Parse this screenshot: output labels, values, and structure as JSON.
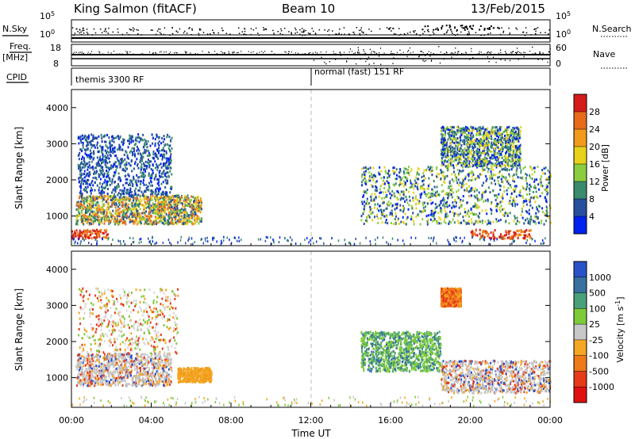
{
  "header": {
    "station": "King Salmon (fitACF)",
    "beam": "Beam 10",
    "date": "13/Feb/2015"
  },
  "side_labels": {
    "nsky": "N.Sky",
    "freq": "Freq.",
    "freq_unit": "[MHz]",
    "cpid": "CPID",
    "nsearch": "N.Search",
    "nave": "Nave"
  },
  "mini_axes": {
    "nsky_ticks": [
      "10^5",
      "10^0"
    ],
    "nsearch_ticks": [
      "10^5",
      "10^0"
    ],
    "freq_ticks": [
      "18",
      "8"
    ],
    "nave_ticks": [
      "60",
      "0"
    ]
  },
  "cpid": [
    {
      "label": "themis 3300 RF",
      "start_hour": 0
    },
    {
      "label": "normal (fast) 151 RF",
      "start_hour": 12
    }
  ],
  "chart_data": [
    {
      "type": "heatmap",
      "title": "",
      "xlabel": "Time UT",
      "ylabel": "Slant Range [km]",
      "xlim": [
        0,
        24
      ],
      "ylim": [
        180,
        4500
      ],
      "x_ticks": [
        "00:00",
        "04:00",
        "08:00",
        "12:00",
        "16:00",
        "20:00",
        "00:00"
      ],
      "y_ticks": [
        1000,
        2000,
        3000,
        4000
      ],
      "colorbar": {
        "label": "Power [dB]",
        "ticks": [
          "4",
          "8",
          "12",
          "16",
          "20",
          "24",
          "28"
        ],
        "colors": [
          "#0022ee",
          "#274f9e",
          "#3a8a6e",
          "#8acd40",
          "#e8d21b",
          "#f19a1b",
          "#e86a1b",
          "#d61b1b"
        ]
      },
      "features": [
        {
          "t0": 0.2,
          "t1": 6.5,
          "r0": 800,
          "r1": 1600,
          "level": "high"
        },
        {
          "t0": 0.3,
          "t1": 5.0,
          "r0": 1600,
          "r1": 3300,
          "level": "low"
        },
        {
          "t0": 0.0,
          "t1": 1.8,
          "r0": 400,
          "r1": 650,
          "level": "max"
        },
        {
          "t0": 14.5,
          "t1": 24.0,
          "r0": 800,
          "r1": 2400,
          "level": "medium"
        },
        {
          "t0": 18.5,
          "t1": 22.5,
          "r0": 2400,
          "r1": 3500,
          "level": "medium"
        },
        {
          "t0": 20.0,
          "t1": 23.0,
          "r0": 400,
          "r1": 650,
          "level": "max"
        }
      ]
    },
    {
      "type": "heatmap",
      "title": "",
      "xlabel": "Time UT",
      "ylabel": "Slant Range [km]",
      "xlim": [
        0,
        24
      ],
      "ylim": [
        180,
        4500
      ],
      "x_ticks": [
        "00:00",
        "04:00",
        "08:00",
        "12:00",
        "16:00",
        "20:00",
        "00:00"
      ],
      "y_ticks": [
        1000,
        2000,
        3000,
        4000
      ],
      "colorbar": {
        "label": "Velocity [m s^-1]",
        "ticks": [
          "1000",
          "500",
          "100",
          "25",
          "-25",
          "-100",
          "-500",
          "-1000"
        ],
        "colors": [
          "#2a52c8",
          "#3870a0",
          "#4aa07a",
          "#7ecb3a",
          "#c8c8c8",
          "#f5a622",
          "#ef7a1a",
          "#e63a1a",
          "#e01010"
        ]
      },
      "features": [
        {
          "t0": 0.2,
          "t1": 5.0,
          "r0": 800,
          "r1": 1700,
          "v": "-25..25"
        },
        {
          "t0": 5.3,
          "t1": 7.0,
          "r0": 900,
          "r1": 1300,
          "v": "-100"
        },
        {
          "t0": 14.5,
          "t1": 18.5,
          "r0": 1200,
          "r1": 2300,
          "v": "100"
        },
        {
          "t0": 18.5,
          "t1": 19.5,
          "r0": 3000,
          "r1": 3500,
          "v": "-500"
        },
        {
          "t0": 18.5,
          "t1": 24.0,
          "r0": 600,
          "r1": 1500,
          "v": "-25..25"
        }
      ]
    }
  ]
}
